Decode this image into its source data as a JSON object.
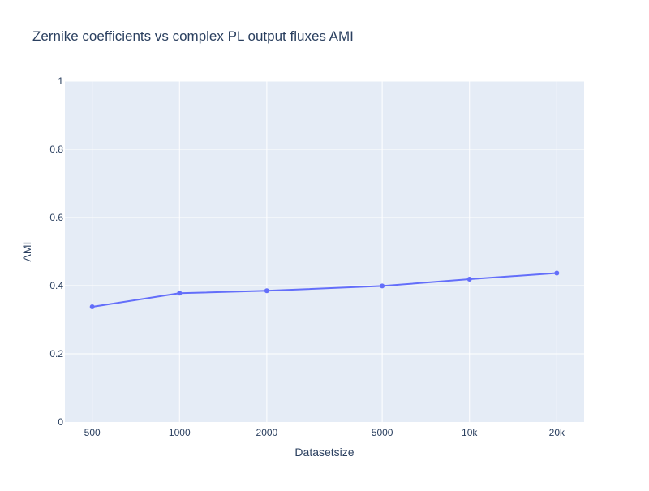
{
  "colors": {
    "plot_bg": "#e5ecf6",
    "grid": "#ffffff",
    "series": "#636efa",
    "text": "#2a3f5f"
  },
  "chart_data": {
    "type": "line",
    "title": "Zernike coefficients vs complex PL output fluxes AMI",
    "xlabel": "Datasetsize",
    "ylabel": "AMI",
    "x_scale": "log",
    "x": [
      500,
      1000,
      2000,
      5000,
      10000,
      20000
    ],
    "x_tick_labels": [
      "500",
      "1000",
      "2000",
      "5000",
      "10k",
      "20k"
    ],
    "y_ticks": [
      0,
      0.2,
      0.4,
      0.6,
      0.8,
      1
    ],
    "y_tick_labels": [
      "0",
      "0.2",
      "0.4",
      "0.6",
      "0.8",
      "1"
    ],
    "ylim": [
      0,
      1
    ],
    "grid": true,
    "series": [
      {
        "values": [
          0.338,
          0.378,
          0.385,
          0.399,
          0.419,
          0.437
        ]
      }
    ]
  }
}
